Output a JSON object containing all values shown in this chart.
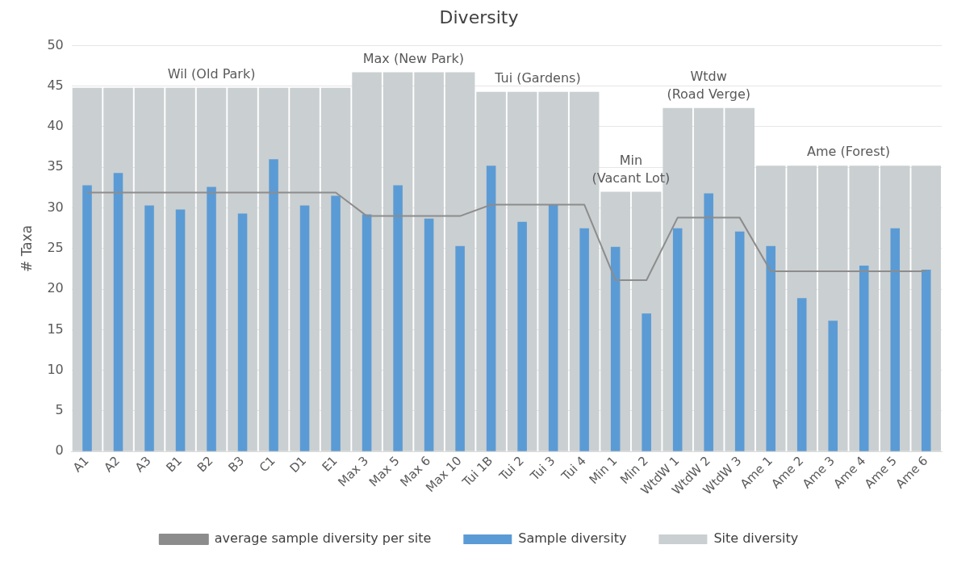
{
  "chart_data": {
    "type": "bar",
    "title": "Diversity",
    "ylabel": "# Taxa",
    "categories": [
      "A1",
      "A2",
      "A3",
      "B1",
      "B2",
      "B3",
      "C1",
      "D1",
      "E1",
      "Max 3",
      "Max 5",
      "Max 6",
      "Max 10",
      "Tui 1B",
      "Tui 2",
      "Tui 3",
      "Tui 4",
      "Min 1",
      "Min 2",
      "WtdW 1",
      "WtdW 2",
      "WtdW 3",
      "Ame 1",
      "Ame 2",
      "Ame 3",
      "Ame 4",
      "Ame 5",
      "Ame 6"
    ],
    "series": [
      {
        "name": "Site diversity",
        "color": "#cacfd1",
        "values": [
          44.8,
          44.8,
          44.8,
          44.8,
          44.8,
          44.8,
          44.8,
          44.8,
          44.8,
          46.7,
          46.7,
          46.7,
          46.7,
          44.3,
          44.3,
          44.3,
          44.3,
          32,
          32,
          42.3,
          42.3,
          42.3,
          35.2,
          35.2,
          35.2,
          35.2,
          35.2,
          35.2
        ]
      },
      {
        "name": "Sample diversity",
        "color": "#5b9bd5",
        "values": [
          32.8,
          34.3,
          30.3,
          29.8,
          32.6,
          29.3,
          36,
          30.3,
          31.5,
          29.2,
          32.8,
          28.7,
          25.3,
          35.2,
          28.3,
          30.4,
          27.5,
          25.2,
          17,
          27.5,
          31.8,
          27.1,
          25.3,
          18.9,
          16.1,
          22.9,
          27.5,
          22.4
        ]
      },
      {
        "name": "average sample diversity per site",
        "type": "line",
        "color": "#8c8c8c",
        "marker": "none",
        "values": [
          31.9,
          31.9,
          31.9,
          31.9,
          31.9,
          31.9,
          31.9,
          31.9,
          31.9,
          29,
          29,
          29,
          29,
          30.4,
          30.4,
          30.4,
          30.4,
          21.1,
          21.1,
          28.8,
          28.8,
          28.8,
          22.2,
          22.2,
          22.2,
          22.2,
          22.2,
          22.2
        ]
      }
    ],
    "ylim": [
      0,
      50
    ],
    "yticks": [
      0,
      5,
      10,
      15,
      20,
      25,
      30,
      35,
      40,
      45,
      50
    ],
    "grid": "y",
    "legend": "bottom",
    "annotations": [
      "Wil (Old Park)",
      "Max (New Park)",
      "Tui (Gardens)",
      "Min\n(Vacant Lot)",
      "Wtdw\n(Road Verge)",
      "Ame (Forest)"
    ]
  }
}
